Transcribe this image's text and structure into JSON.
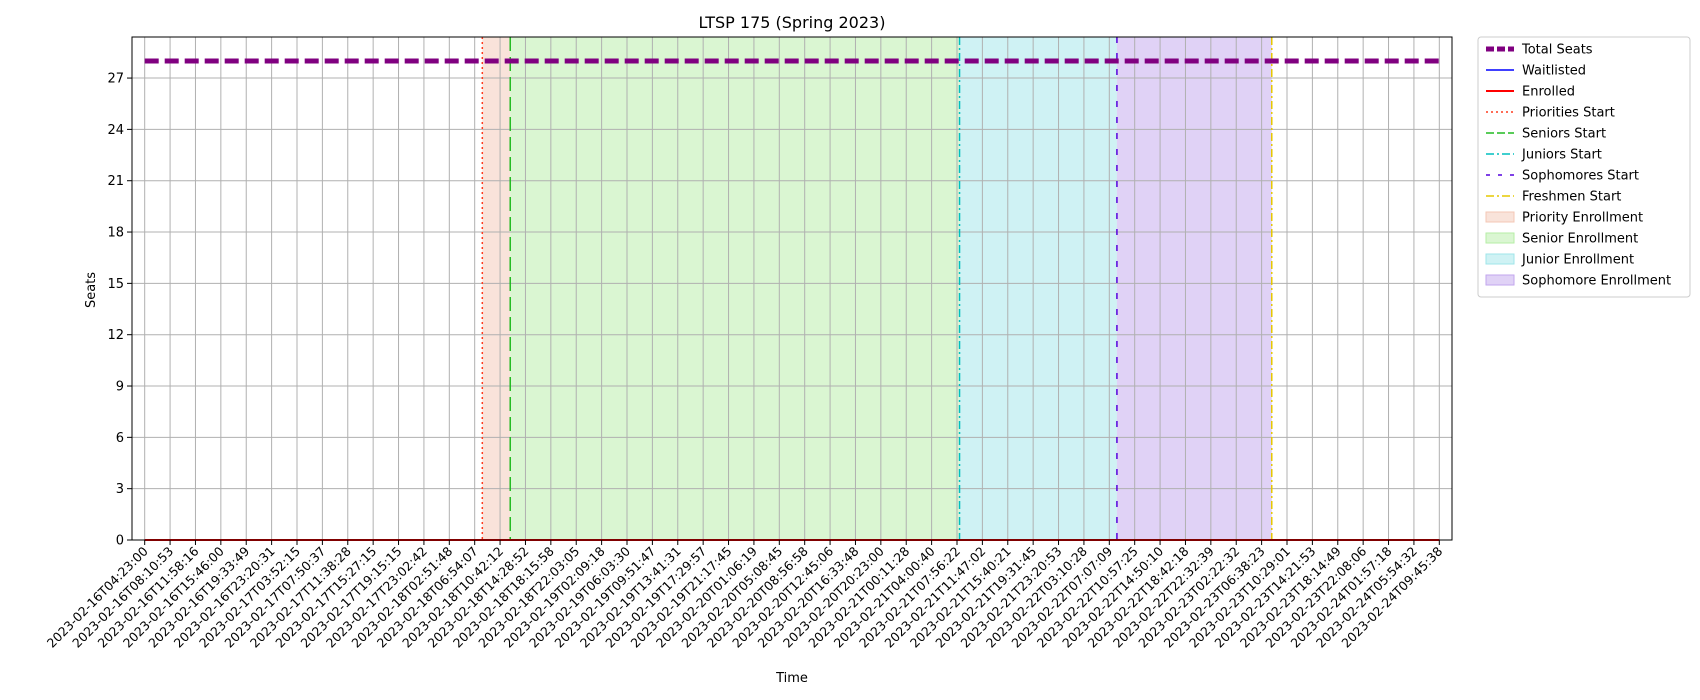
{
  "chart_data": {
    "type": "line",
    "title": "LTSP 175 (Spring 2023)",
    "xlabel": "Time",
    "ylabel": "Seats",
    "ylim": [
      0,
      29.4
    ],
    "yticks": [
      0,
      3,
      6,
      9,
      12,
      15,
      18,
      21,
      24,
      27
    ],
    "grid": true,
    "legend_position": "outside-right",
    "x": [
      "2023-02-16T04:23:00",
      "2023-02-16T08:10:53",
      "2023-02-16T11:58:16",
      "2023-02-16T15:46:00",
      "2023-02-16T19:33:49",
      "2023-02-16T23:20:31",
      "2023-02-17T03:52:15",
      "2023-02-17T07:50:37",
      "2023-02-17T11:38:28",
      "2023-02-17T15:27:15",
      "2023-02-17T19:15:15",
      "2023-02-17T23:02:42",
      "2023-02-18T02:51:48",
      "2023-02-18T06:54:07",
      "2023-02-18T10:42:12",
      "2023-02-18T14:28:52",
      "2023-02-18T18:15:58",
      "2023-02-18T22:03:05",
      "2023-02-19T02:09:18",
      "2023-02-19T06:03:30",
      "2023-02-19T09:51:47",
      "2023-02-19T13:41:31",
      "2023-02-19T17:29:57",
      "2023-02-19T21:17:45",
      "2023-02-20T01:06:19",
      "2023-02-20T05:08:45",
      "2023-02-20T08:56:58",
      "2023-02-20T12:45:06",
      "2023-02-20T16:33:48",
      "2023-02-20T20:23:00",
      "2023-02-21T00:11:28",
      "2023-02-21T04:00:40",
      "2023-02-21T07:56:22",
      "2023-02-21T11:47:02",
      "2023-02-21T15:40:21",
      "2023-02-21T19:31:45",
      "2023-02-21T23:20:53",
      "2023-02-22T03:10:28",
      "2023-02-22T07:07:09",
      "2023-02-22T10:57:25",
      "2023-02-22T14:50:10",
      "2023-02-22T18:42:18",
      "2023-02-22T22:32:39",
      "2023-02-23T02:22:32",
      "2023-02-23T06:38:23",
      "2023-02-23T10:29:01",
      "2023-02-23T14:21:53",
      "2023-02-23T18:14:49",
      "2023-02-23T22:08:06",
      "2023-02-24T01:57:18",
      "2023-02-24T05:54:32",
      "2023-02-24T09:45:38"
    ],
    "series": [
      {
        "name": "Total Seats",
        "color": "#800080",
        "style": "dashed",
        "values": [
          28,
          28,
          28,
          28,
          28,
          28,
          28,
          28,
          28,
          28,
          28,
          28,
          28,
          28,
          28,
          28,
          28,
          28,
          28,
          28,
          28,
          28,
          28,
          28,
          28,
          28,
          28,
          28,
          28,
          28,
          28,
          28,
          28,
          28,
          28,
          28,
          28,
          28,
          28,
          28,
          28,
          28,
          28,
          28,
          28,
          28,
          28,
          28,
          28,
          28,
          28,
          28
        ]
      },
      {
        "name": "Waitlisted",
        "color": "#0000ff",
        "style": "solid",
        "values": [
          0,
          0,
          0,
          0,
          0,
          0,
          0,
          0,
          0,
          0,
          0,
          0,
          0,
          0,
          0,
          0,
          0,
          0,
          0,
          0,
          0,
          0,
          0,
          0,
          0,
          0,
          0,
          0,
          0,
          0,
          0,
          0,
          0,
          0,
          0,
          0,
          0,
          0,
          0,
          0,
          0,
          0,
          0,
          0,
          0,
          0,
          0,
          0,
          0,
          0,
          0,
          0
        ]
      },
      {
        "name": "Enrolled",
        "color": "#ff0000",
        "style": "solid",
        "values": [
          0,
          0,
          0,
          0,
          0,
          0,
          0,
          0,
          0,
          0,
          0,
          0,
          0,
          0,
          0,
          0,
          0,
          0,
          0,
          0,
          0,
          0,
          0,
          0,
          0,
          0,
          0,
          0,
          0,
          0,
          0,
          0,
          0,
          0,
          0,
          0,
          0,
          0,
          0,
          0,
          0,
          0,
          0,
          0,
          0,
          0,
          0,
          0,
          0,
          0,
          0,
          0
        ]
      }
    ],
    "vlines": [
      {
        "name": "Priorities Start",
        "x": 13.3,
        "color": "#ff3b1f",
        "style": "dotted"
      },
      {
        "name": "Seniors Start",
        "x": 14.4,
        "color": "#22bb22",
        "style": "dashed"
      },
      {
        "name": "Juniors Start",
        "x": 32.1,
        "color": "#00bfbf",
        "style": "dashdot"
      },
      {
        "name": "Sophomores Start",
        "x": 38.3,
        "color": "#5500dd",
        "style": "loosedash"
      },
      {
        "name": "Freshmen Start",
        "x": 44.4,
        "color": "#e6c800",
        "style": "dashdot"
      }
    ],
    "spans": [
      {
        "name": "Priority Enrollment",
        "from": 13.3,
        "to": 14.4,
        "color": "#f4c7b5"
      },
      {
        "name": "Senior Enrollment",
        "from": 14.4,
        "to": 32.1,
        "color": "#b6eea6"
      },
      {
        "name": "Junior Enrollment",
        "from": 32.1,
        "to": 38.3,
        "color": "#9fe5ea"
      },
      {
        "name": "Sophomore Enrollment",
        "from": 38.3,
        "to": 44.4,
        "color": "#c2a6ee"
      }
    ]
  }
}
